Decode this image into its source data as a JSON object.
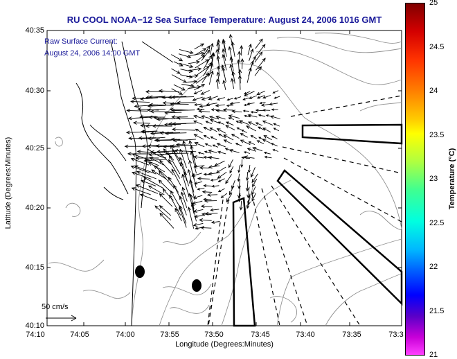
{
  "title": "RU COOL  NOAA−12  Sea Surface Temperature:  August 24, 2006 1016 GMT",
  "overlay_line1": "Raw Surface Current:",
  "overlay_line2": "August 24, 2006 14:00 GMT",
  "scale_label": "50 cm/s",
  "xlabel": "Longitude (Degrees:Minutes)",
  "ylabel": "Latitude (Degrees:Minutes)",
  "colorbar_label": "Temperature (°C)",
  "y_ticks": [
    "40:35",
    "40:30",
    "40:25",
    "40:20",
    "40:15",
    "40:10"
  ],
  "x_ticks": [
    "74:10",
    "74:05",
    "74:00",
    "73:55",
    "73:50",
    "73:45",
    "73:40",
    "73:35",
    "73:3"
  ],
  "colorbar_ticks": [
    "25",
    "24.5",
    "24",
    "23.5",
    "23",
    "22.5",
    "22",
    "21.5",
    "21"
  ],
  "colorbar_range": [
    21,
    25
  ]
}
